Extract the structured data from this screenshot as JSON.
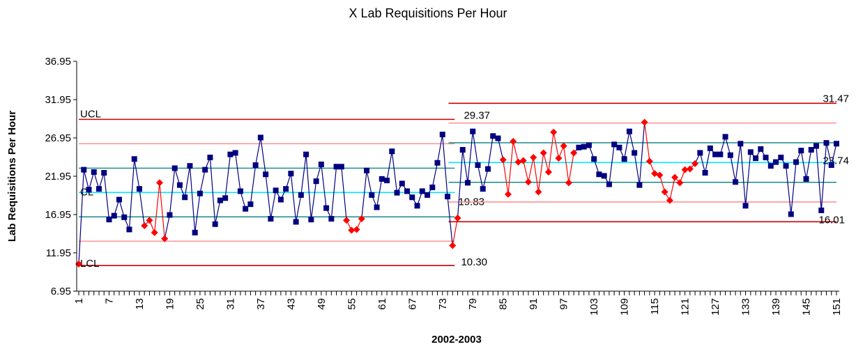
{
  "chart_data": {
    "type": "control",
    "title": "X Lab Requisitions Per Hour",
    "x_label": "2002-2003",
    "y_label": "Lab Requisitions Per Hour",
    "x": [
      1,
      2,
      3,
      4,
      5,
      6,
      7,
      8,
      9,
      10,
      11,
      12,
      13,
      14,
      15,
      16,
      17,
      18,
      19,
      20,
      21,
      22,
      23,
      24,
      25,
      26,
      27,
      28,
      29,
      30,
      31,
      32,
      33,
      34,
      35,
      36,
      37,
      38,
      39,
      40,
      41,
      42,
      43,
      44,
      45,
      46,
      47,
      48,
      49,
      50,
      51,
      52,
      53,
      54,
      55,
      56,
      57,
      58,
      59,
      60,
      61,
      62,
      63,
      64,
      65,
      66,
      67,
      68,
      69,
      70,
      71,
      72,
      73,
      74,
      75,
      76,
      77,
      78,
      79,
      80,
      81,
      82,
      83,
      84,
      85,
      86,
      87,
      88,
      89,
      90,
      91,
      92,
      93,
      94,
      95,
      96,
      97,
      98,
      99,
      100,
      101,
      102,
      103,
      104,
      105,
      106,
      107,
      108,
      109,
      110,
      111,
      112,
      113,
      114,
      115,
      116,
      117,
      118,
      119,
      120,
      121,
      122,
      123,
      124,
      125,
      126,
      127,
      128,
      129,
      130,
      131,
      132,
      133,
      134,
      135,
      136,
      137,
      138,
      139,
      140,
      141,
      142,
      143,
      144,
      145,
      146,
      147,
      148,
      149,
      150,
      151
    ],
    "series": [
      {
        "name": "X",
        "color": "#000080",
        "highlight_color": "#ff0000",
        "values": [
          10.5,
          22.8,
          20.2,
          22.5,
          20.3,
          22.4,
          16.3,
          16.8,
          18.9,
          16.6,
          15.0,
          24.2,
          20.3,
          15.5,
          16.2,
          14.6,
          21.1,
          13.8,
          16.9,
          23.0,
          20.8,
          19.2,
          23.3,
          14.6,
          19.7,
          22.8,
          24.4,
          15.7,
          18.8,
          19.1,
          24.8,
          25.0,
          20.0,
          17.7,
          18.3,
          23.4,
          27.0,
          22.2,
          16.4,
          20.1,
          18.9,
          20.3,
          22.3,
          16.0,
          19.5,
          24.8,
          16.3,
          21.3,
          23.5,
          17.8,
          16.4,
          23.2,
          23.2,
          16.2,
          14.9,
          15.0,
          16.4,
          22.7,
          19.5,
          17.9,
          21.6,
          21.4,
          25.2,
          19.8,
          21.0,
          20.0,
          19.2,
          18.1,
          20.0,
          19.5,
          20.5,
          23.7,
          27.4,
          19.3,
          12.9,
          16.5,
          25.4,
          21.1,
          27.8,
          23.4,
          20.3,
          22.9,
          27.2,
          26.9,
          24.1,
          19.6,
          26.5,
          23.8,
          24.0,
          21.2,
          24.4,
          19.9,
          25.0,
          22.5,
          27.7,
          24.3,
          25.9,
          21.1,
          25.0,
          25.7,
          25.8,
          26.0,
          24.2,
          22.2,
          22.0,
          20.9,
          26.1,
          25.7,
          24.2,
          27.8,
          25.0,
          20.8,
          29.0,
          23.9,
          22.3,
          22.1,
          19.9,
          18.8,
          21.8,
          21.1,
          22.8,
          22.9,
          23.6,
          25.0,
          22.4,
          25.6,
          24.8,
          24.8,
          27.1,
          24.7,
          21.2,
          26.2,
          18.1,
          25.1,
          24.3,
          25.5,
          24.4,
          23.3,
          23.8,
          24.4,
          23.3,
          17.0,
          23.8,
          25.3,
          21.6,
          25.4,
          25.9,
          17.5,
          26.3,
          23.4,
          26.2
        ],
        "highlight": [
          1,
          14,
          15,
          16,
          17,
          18,
          54,
          55,
          56,
          57,
          75,
          76,
          85,
          86,
          87,
          88,
          89,
          90,
          91,
          92,
          93,
          94,
          95,
          96,
          97,
          98,
          99,
          113,
          114,
          115,
          116,
          117,
          118,
          119,
          120,
          121,
          122,
          123
        ]
      }
    ],
    "line_names": [
      "UCL",
      "CL",
      "LCL"
    ],
    "phases": [
      {
        "start": 1,
        "end": 75,
        "ucl": {
          "value": 29.37,
          "label": "29.37"
        },
        "cl": {
          "value": 19.83,
          "label": "19.83"
        },
        "lcl": {
          "value": 10.3,
          "label": "10.30"
        },
        "upper_2sigma": 26.19,
        "lower_2sigma": 13.47,
        "upper_1sigma": 23.01,
        "lower_1sigma": 16.65
      },
      {
        "start": 76,
        "end": 151,
        "ucl": {
          "value": 31.47,
          "label": "31.47"
        },
        "cl": {
          "value": 23.74,
          "label": "23.74"
        },
        "lcl": {
          "value": 16.01,
          "label": "16.01"
        },
        "upper_2sigma": 28.89,
        "lower_2sigma": 18.59,
        "upper_1sigma": 26.32,
        "lower_1sigma": 21.16
      }
    ],
    "limit_colors": {
      "control": "#cc0000",
      "sigma2": "#ff8080",
      "sigma1": "#008080",
      "center": "#00e5ff"
    },
    "xlim": [
      1,
      151
    ],
    "xticks": [
      1,
      7,
      13,
      19,
      25,
      31,
      37,
      43,
      49,
      55,
      61,
      67,
      73,
      79,
      85,
      91,
      97,
      103,
      109,
      115,
      121,
      127,
      133,
      139,
      145,
      151
    ],
    "ylim": [
      6.95,
      36.95
    ],
    "yticks": [
      6.95,
      11.95,
      16.95,
      21.95,
      26.95,
      31.95,
      36.95
    ]
  }
}
